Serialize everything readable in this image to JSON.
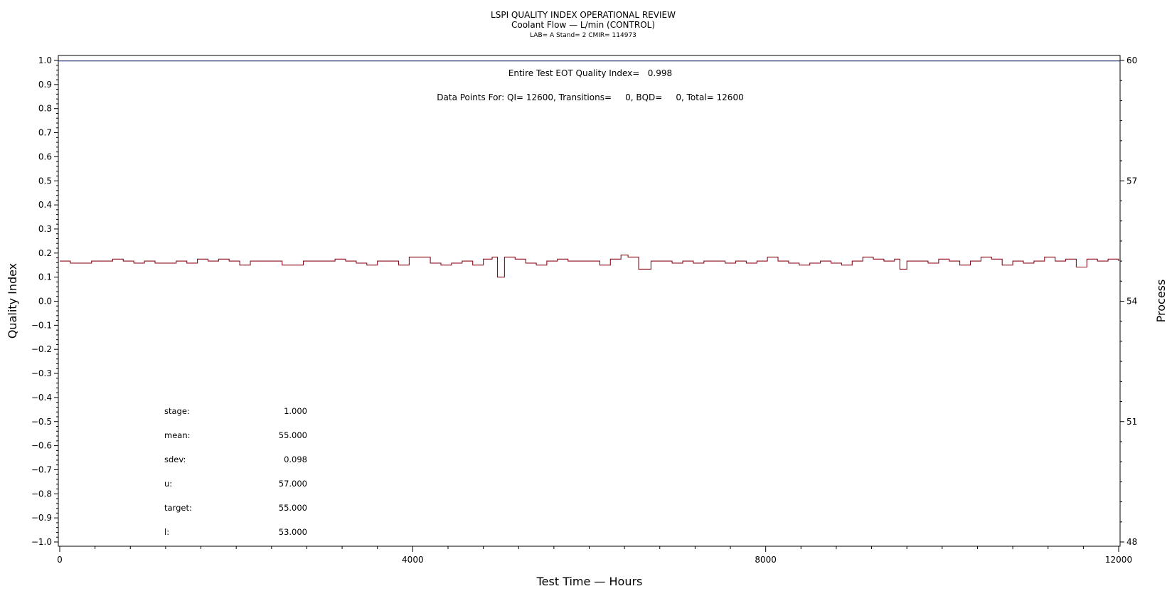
{
  "chart_data": {
    "type": "line",
    "title": "LSPI QUALITY INDEX OPERATIONAL REVIEW",
    "subtitle": "Coolant Flow — L/min (CONTROL)",
    "subtitle2": "LAB= A Stand= 2 CMIR= 114973",
    "xlabel": "Test Time — Hours",
    "ylabel": "Quality Index",
    "y2label": "Process",
    "xlim": [
      0,
      12000
    ],
    "ylim": [
      -1.0,
      1.0
    ],
    "y2lim": [
      48,
      60
    ],
    "x_ticks": [
      "0",
      "4000",
      "8000",
      "12000"
    ],
    "y_ticks": [
      "1.0",
      "0.9",
      "0.8",
      "0.7",
      "0.6",
      "0.5",
      "0.4",
      "0.3",
      "0.2",
      "0.1",
      "0.0",
      "−0.1",
      "−0.2",
      "−0.3",
      "−0.4",
      "−0.5",
      "−0.6",
      "−0.7",
      "−0.8",
      "−0.9",
      "−1.0"
    ],
    "y2_ticks": [
      "60",
      "57",
      "54",
      "51",
      "48"
    ],
    "grid": false,
    "annotations": {
      "eot": "Entire Test EOT Quality Index=   0.998",
      "points": "Data Points For: QI= 12600, Transitions=     0, BQD=     0, Total= 12600"
    },
    "reference_line": {
      "name": "Quality Index",
      "y": 0.998
    },
    "stats": [
      {
        "label": "stage:",
        "value": "1.000"
      },
      {
        "label": "mean:",
        "value": "55.000"
      },
      {
        "label": "sdev:",
        "value": "0.098"
      },
      {
        "label": "u:",
        "value": "57.000"
      },
      {
        "label": "target:",
        "value": "55.000"
      },
      {
        "label": "l:",
        "value": "53.000"
      }
    ],
    "series": [
      {
        "axis": "y2",
        "color": "#8b0d1c",
        "x": [
          0,
          120,
          240,
          360,
          480,
          600,
          720,
          840,
          960,
          1080,
          1200,
          1320,
          1440,
          1560,
          1680,
          1800,
          1920,
          2040,
          2160,
          2280,
          2400,
          2520,
          2640,
          2760,
          2880,
          3000,
          3120,
          3240,
          3360,
          3480,
          3600,
          3720,
          3840,
          3960,
          4080,
          4200,
          4320,
          4440,
          4560,
          4680,
          4800,
          4900,
          4960,
          5040,
          5160,
          5280,
          5400,
          5520,
          5640,
          5760,
          5880,
          6000,
          6120,
          6240,
          6360,
          6440,
          6560,
          6620,
          6700,
          6820,
          6940,
          7060,
          7180,
          7300,
          7420,
          7540,
          7660,
          7780,
          7900,
          8020,
          8140,
          8260,
          8380,
          8500,
          8620,
          8740,
          8860,
          8980,
          9100,
          9220,
          9340,
          9460,
          9520,
          9600,
          9720,
          9840,
          9960,
          10080,
          10200,
          10320,
          10440,
          10560,
          10680,
          10800,
          10920,
          11040,
          11160,
          11280,
          11400,
          11520,
          11640,
          11760,
          11880,
          12000
        ],
        "y": [
          55.0,
          54.95,
          54.95,
          55.0,
          55.0,
          55.05,
          55.0,
          54.95,
          55.0,
          54.95,
          54.95,
          55.0,
          54.95,
          55.05,
          55.0,
          55.05,
          55.0,
          54.9,
          55.0,
          55.0,
          55.0,
          54.9,
          54.9,
          55.0,
          55.0,
          55.0,
          55.05,
          55.0,
          54.95,
          54.9,
          55.0,
          55.0,
          54.9,
          55.1,
          55.1,
          54.95,
          54.9,
          54.95,
          55.0,
          54.9,
          55.05,
          55.1,
          54.6,
          55.1,
          55.05,
          54.95,
          54.9,
          55.0,
          55.05,
          55.0,
          55.0,
          55.0,
          54.9,
          55.05,
          55.15,
          55.1,
          54.8,
          54.8,
          55.0,
          55.0,
          54.95,
          55.0,
          54.95,
          55.0,
          55.0,
          54.95,
          55.0,
          54.95,
          55.0,
          55.1,
          55.0,
          54.95,
          54.9,
          54.95,
          55.0,
          54.95,
          54.9,
          55.0,
          55.1,
          55.05,
          55.0,
          55.05,
          54.8,
          55.0,
          55.0,
          54.95,
          55.05,
          55.0,
          54.9,
          55.0,
          55.1,
          55.05,
          54.9,
          55.0,
          54.95,
          55.0,
          55.1,
          55.0,
          55.05,
          54.85,
          55.05,
          55.0,
          55.05,
          55.0
        ]
      }
    ]
  }
}
